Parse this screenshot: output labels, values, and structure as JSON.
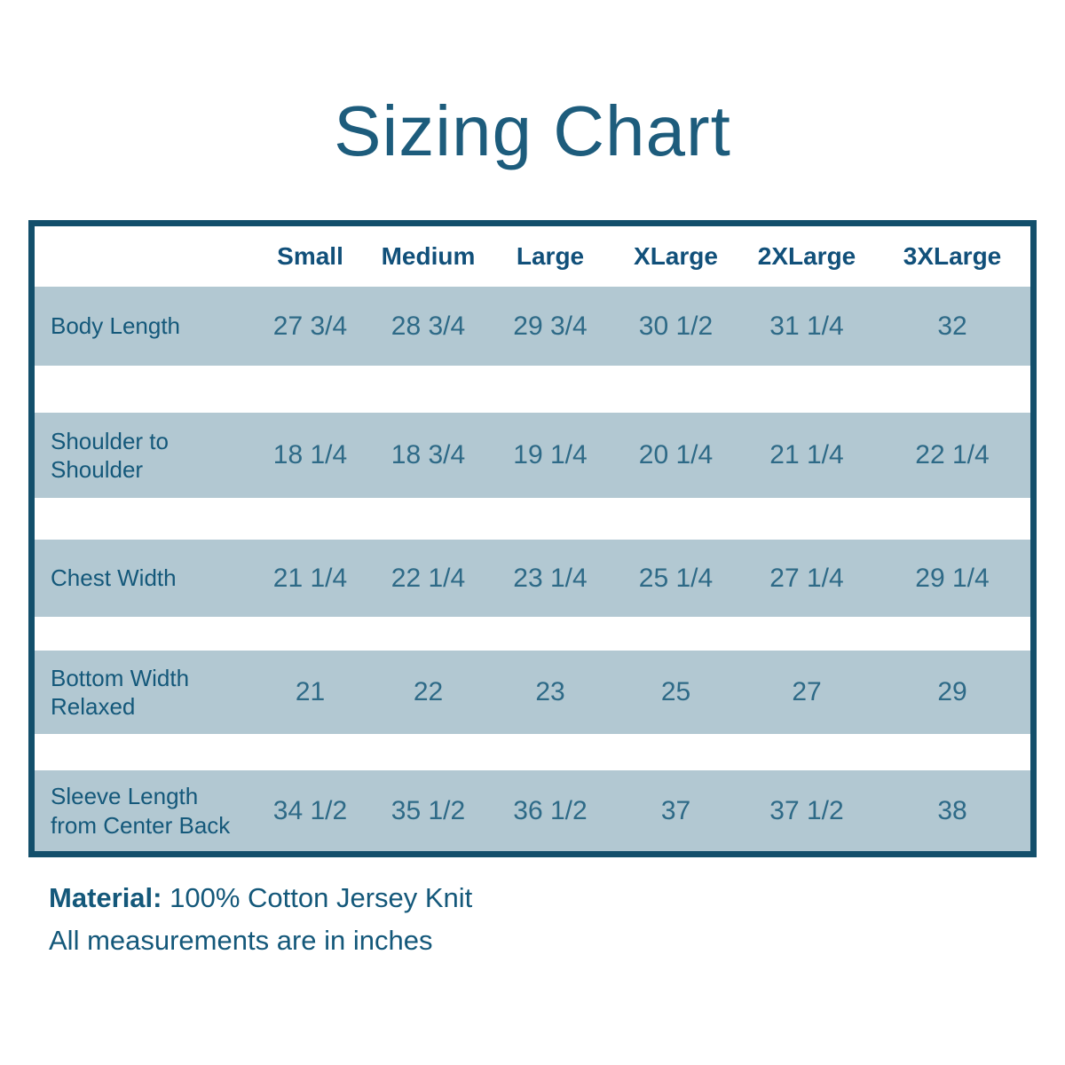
{
  "chart_data": {
    "type": "table",
    "title": "Sizing Chart",
    "columns": [
      "Small",
      "Medium",
      "Large",
      "XLarge",
      "2XLarge",
      "3XLarge"
    ],
    "rows": [
      {
        "label": "Body Length",
        "values": [
          "27 3/4",
          "28 3/4",
          "29 3/4",
          "30 1/2",
          "31 1/4",
          "32"
        ]
      },
      {
        "label": "Shoulder to Shoulder",
        "values": [
          "18 1/4",
          "18 3/4",
          "19 1/4",
          "20 1/4",
          "21 1/4",
          "22 1/4"
        ]
      },
      {
        "label": "Chest Width",
        "values": [
          "21 1/4",
          "22 1/4",
          "23 1/4",
          "25 1/4",
          "27 1/4",
          "29 1/4"
        ]
      },
      {
        "label": "Bottom Width Relaxed",
        "values": [
          "21",
          "22",
          "23",
          "25",
          "27",
          "29"
        ]
      },
      {
        "label": "Sleeve Length from Center Back",
        "values": [
          "34 1/2",
          "35 1/2",
          "36 1/2",
          "37",
          "37 1/2",
          "38"
        ]
      }
    ],
    "layout_hints": {
      "striped_rows": true,
      "first_column_is_labels": true
    }
  },
  "footer": {
    "material_label": "Material:",
    "material_value": "100% Cotton Jersey Knit",
    "units_note": "All measurements are in inches"
  },
  "colors": {
    "title_text": "#1d5c7c",
    "table_border": "#134f6b",
    "header_text": "#11507a",
    "row_label_text": "#14587a",
    "value_text": "#2e6a87",
    "row_background": "#b2c8d2",
    "page_background": "#ffffff"
  }
}
